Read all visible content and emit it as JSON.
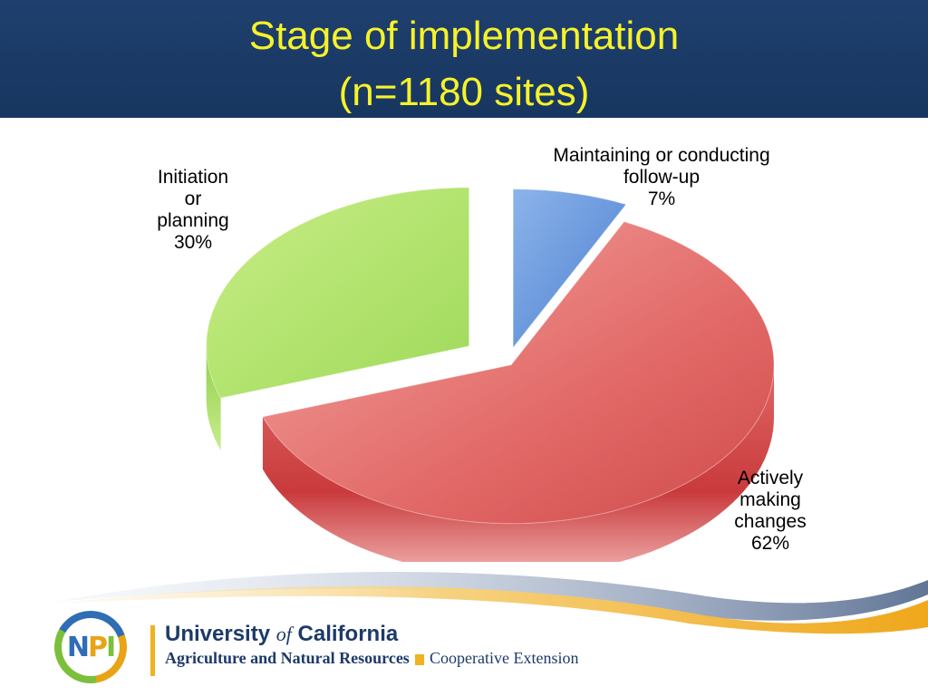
{
  "header": {
    "title_line1": "Stage of implementation",
    "title_line2": "(n=1180 sites)",
    "title_color": "#f6f22a",
    "background_color": "#1b3a66"
  },
  "chart_data": {
    "type": "pie",
    "title": "Stage of implementation (n=1180 sites)",
    "style": "3d-exploded",
    "slices": [
      {
        "label": "Maintaining or conducting follow-up",
        "value": 7,
        "display": "7%",
        "color": "#4f86d4"
      },
      {
        "label": "Actively making changes",
        "value": 62,
        "display": "62%",
        "color": "#e05a5a"
      },
      {
        "label": "Initiation or planning",
        "value": 30,
        "display": "30%",
        "color": "#a6dd5e"
      }
    ]
  },
  "labels": {
    "maintaining": "Maintaining or conducting\nfollow-up\n7%",
    "actively": "Actively\nmaking\nchanges\n62%",
    "initiation": "Initiation\nor\nplanning\n30%"
  },
  "footer": {
    "logo_text": {
      "n": "N",
      "p": "P",
      "i": "I"
    },
    "university": "University",
    "of": "of",
    "california": "California",
    "division": "Agriculture and Natural Resources",
    "extension": "Cooperative Extension",
    "brand_blue": "#1d3a69",
    "brand_gold": "#f0b21e"
  }
}
